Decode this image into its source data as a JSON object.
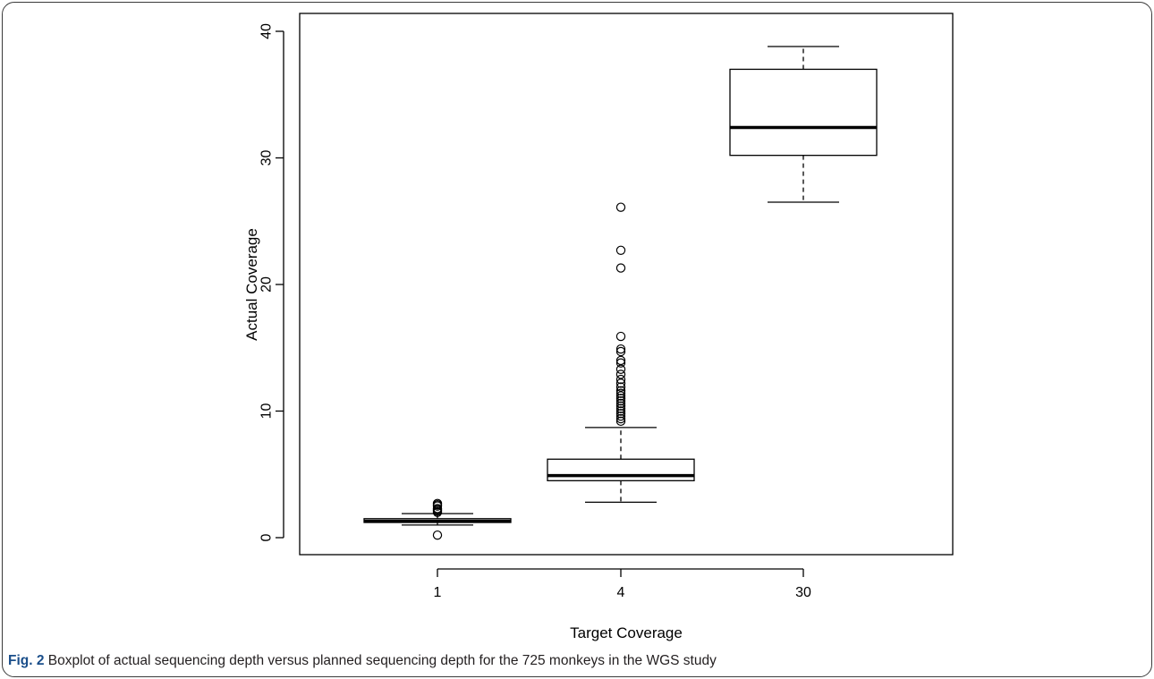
{
  "chart_data": {
    "type": "boxplot",
    "title": "",
    "xlabel": "Target Coverage",
    "ylabel": "Actual Coverage",
    "ylim": [
      0,
      40
    ],
    "yticks": [
      0,
      10,
      20,
      30,
      40
    ],
    "categories": [
      "1",
      "4",
      "30"
    ],
    "grid": false,
    "legend": "none",
    "boxes": [
      {
        "category": "1",
        "whisker_low": 1.0,
        "q1": 1.2,
        "median": 1.3,
        "q3": 1.5,
        "whisker_high": 1.9,
        "outliers": [
          0.2,
          2.0,
          2.1,
          2.2,
          2.3,
          2.5,
          2.6,
          2.7
        ]
      },
      {
        "category": "4",
        "whisker_low": 2.8,
        "q1": 4.5,
        "median": 4.9,
        "q3": 6.2,
        "whisker_high": 8.7,
        "outliers": [
          9.2,
          9.4,
          9.6,
          9.8,
          10.0,
          10.2,
          10.4,
          10.6,
          10.8,
          11.0,
          11.2,
          11.4,
          11.6,
          11.9,
          12.2,
          12.5,
          12.9,
          13.3,
          13.8,
          14.0,
          14.7,
          14.9,
          15.9,
          21.3,
          22.7,
          26.1
        ]
      },
      {
        "category": "30",
        "whisker_low": 26.5,
        "q1": 30.2,
        "median": 32.4,
        "q3": 37.0,
        "whisker_high": 38.8,
        "outliers": []
      }
    ]
  },
  "caption": {
    "label": "Fig. 2",
    "text": "Boxplot of actual sequencing depth versus planned sequencing depth for the 725 monkeys in the WGS study"
  }
}
